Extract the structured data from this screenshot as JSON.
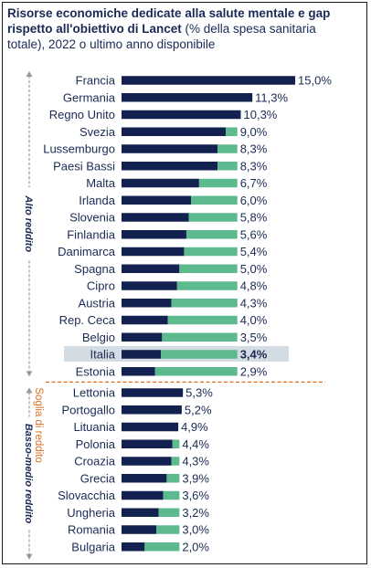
{
  "title": {
    "bold": "Risorse economiche dedicate alla salute mentale e gap rispetto all'obiettivo di Lancet",
    "normal": " (% della spesa sanitaria totale), 2022 o ultimo anno disponibile"
  },
  "colors": {
    "bar": "#12214f",
    "gap": "#5dba8f",
    "highlight": "#d3dbe3",
    "threshold": "#e07020",
    "text": "#1b2a55",
    "arrow": "#9a9a9a"
  },
  "chart_data": {
    "type": "bar",
    "orientation": "horizontal",
    "stacked": true,
    "value_format": "percent",
    "xlim": [
      0,
      15
    ],
    "lancet_target": 5,
    "groups": [
      {
        "label": "Alto reddito",
        "start": 0,
        "end": 17
      },
      {
        "label": "Basso-medio reddito",
        "start": 18,
        "end": 27
      }
    ],
    "threshold_label": "Soglia di reddito",
    "highlight": "Italia",
    "categories": [
      "Francia",
      "Germania",
      "Regno Unito",
      "Svezia",
      "Lussemburgo",
      "Paesi Bassi",
      "Malta",
      "Irlanda",
      "Slovenia",
      "Finlandia",
      "Danimarca",
      "Spagna",
      "Cipro",
      "Austria",
      "Rep. Ceca",
      "Belgio",
      "Italia",
      "Estonia",
      "Lettonia",
      "Portogallo",
      "Lituania",
      "Polonia",
      "Croazia",
      "Grecia",
      "Slovacchia",
      "Ungheria",
      "Romania",
      "Bulgaria"
    ],
    "value_labels": [
      "15,0%",
      "11,3%",
      "10,3%",
      "9,0%",
      "8,3%",
      "8,3%",
      "6,7%",
      "6,0%",
      "5,8%",
      "5,6%",
      "5,4%",
      "5,0%",
      "4,8%",
      "4,3%",
      "4,0%",
      "3,5%",
      "3,4%",
      "2,9%",
      "5,3%",
      "5,2%",
      "4,9%",
      "4,4%",
      "4,3%",
      "3,9%",
      "3,6%",
      "3,2%",
      "3,0%",
      "2,0%"
    ],
    "series": [
      {
        "values": [
          15.0,
          11.3,
          10.3,
          9.0,
          8.3,
          8.3,
          6.7,
          6.0,
          5.8,
          5.6,
          5.4,
          5.0,
          4.8,
          4.3,
          4.0,
          3.5,
          3.4,
          2.9,
          5.3,
          5.2,
          4.9,
          4.4,
          4.3,
          3.9,
          3.6,
          3.2,
          3.0,
          2.0
        ]
      },
      {
        "values": [
          0,
          0,
          0,
          1.0,
          1.7,
          1.7,
          3.3,
          4.0,
          4.2,
          4.4,
          4.6,
          5.0,
          5.2,
          5.7,
          6.0,
          6.5,
          6.6,
          7.1,
          0,
          0,
          0,
          0.6,
          0.7,
          1.1,
          1.4,
          1.8,
          2.0,
          3.0
        ]
      }
    ]
  }
}
